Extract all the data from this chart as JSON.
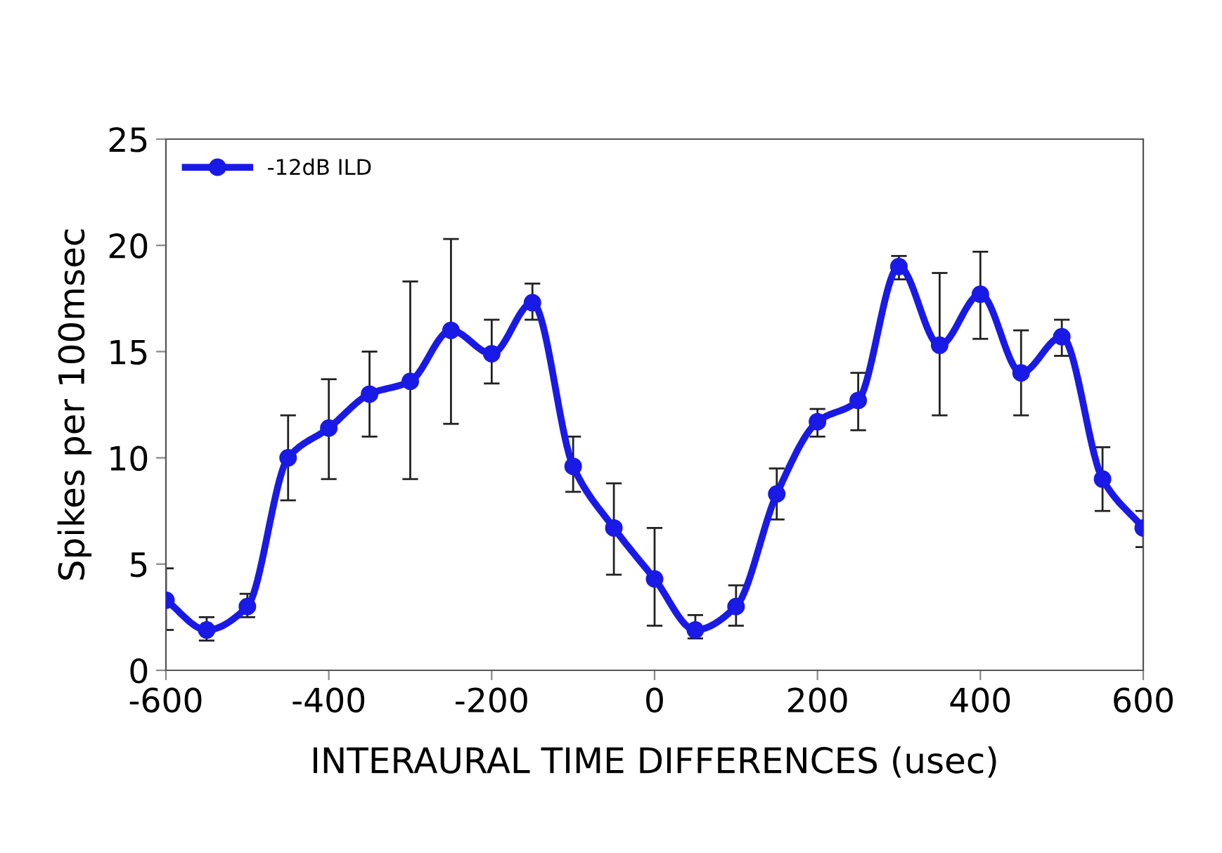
{
  "chart_data": {
    "type": "line",
    "xlabel": "INTERAURAL TIME DIFFERENCES (usec)",
    "ylabel": "Spikes per 100msec",
    "x": [
      -600,
      -550,
      -500,
      -450,
      -400,
      -350,
      -300,
      -250,
      -200,
      -150,
      -100,
      -50,
      0,
      50,
      100,
      150,
      200,
      250,
      300,
      350,
      400,
      450,
      500,
      550,
      600
    ],
    "series": [
      {
        "name": "-12dB ILD",
        "color": "#1a1ae6",
        "values": [
          3.3,
          1.9,
          3.0,
          10.0,
          11.4,
          13.0,
          13.6,
          16.0,
          14.9,
          17.3,
          9.6,
          6.7,
          4.3,
          1.9,
          3.0,
          8.3,
          11.7,
          12.7,
          19.0,
          15.3,
          17.7,
          14.0,
          15.7,
          9.0,
          6.7
        ],
        "errors": [
          [
            1.9,
            4.8
          ],
          [
            1.4,
            2.5
          ],
          [
            2.5,
            3.6
          ],
          [
            8.0,
            12.0
          ],
          [
            9.0,
            13.7
          ],
          [
            11.0,
            15.0
          ],
          [
            9.0,
            18.3
          ],
          [
            11.6,
            20.3
          ],
          [
            13.5,
            16.5
          ],
          [
            16.5,
            18.2
          ],
          [
            8.4,
            11.0
          ],
          [
            4.5,
            8.8
          ],
          [
            2.1,
            6.7
          ],
          [
            1.5,
            2.6
          ],
          [
            2.1,
            4.0
          ],
          [
            7.1,
            9.5
          ],
          [
            11.0,
            12.3
          ],
          [
            11.3,
            14.0
          ],
          [
            18.4,
            19.5
          ],
          [
            12.0,
            18.7
          ],
          [
            15.6,
            19.7
          ],
          [
            12.0,
            16.0
          ],
          [
            14.8,
            16.5
          ],
          [
            7.5,
            10.5
          ],
          [
            5.8,
            7.5
          ]
        ]
      }
    ],
    "xlim": [
      -600,
      600
    ],
    "xticks": [
      -600,
      -400,
      -200,
      0,
      200,
      400,
      600
    ],
    "ylim": [
      0,
      25
    ],
    "yticks": [
      0,
      5,
      10,
      15,
      20,
      25
    ],
    "marker": "circle",
    "line_style": "solid",
    "legend": "top left",
    "grid": false
  }
}
